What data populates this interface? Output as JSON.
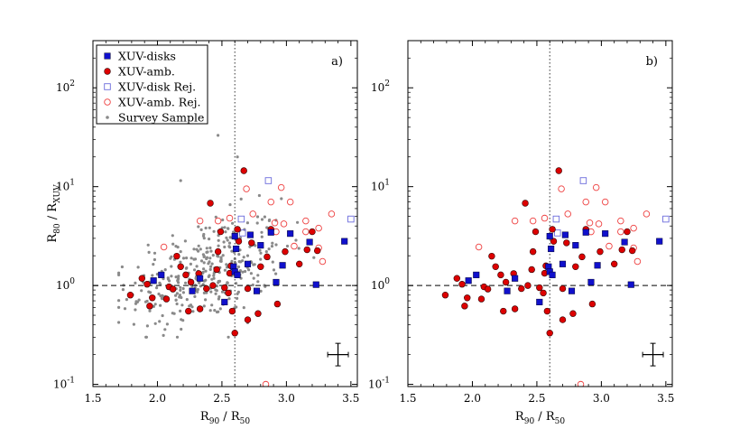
{
  "chart_data": [
    {
      "type": "scatter",
      "panel_label": "a)",
      "xlabel": "R90 / R50",
      "ylabel": "R80 / RXUV",
      "xlim": [
        1.5,
        3.55
      ],
      "ylim_log": [
        0.095,
        300
      ],
      "y_scale": "log",
      "x_ticks": [
        "1.5",
        "2.0",
        "2.5",
        "3.0",
        "3.5"
      ],
      "y_ticks": [
        "10^-1",
        "10^0",
        "10^1",
        "10^2"
      ],
      "reference_lines": {
        "vertical_x": 2.6,
        "horizontal_y": 1.0
      },
      "legend": {
        "position": "top-left",
        "entries": [
          "XUV-disks",
          "XUV-amb.",
          "XUV-disk Rej.",
          "XUV-amb. Rej.",
          "Survey Sample"
        ]
      },
      "series": [
        {
          "name": "XUV-disks",
          "marker": "filled-square",
          "color": "#1010cc",
          "points": [
            [
              1.97,
              1.12
            ],
            [
              2.03,
              1.28
            ],
            [
              2.27,
              0.88
            ],
            [
              2.33,
              1.18
            ],
            [
              2.52,
              0.68
            ],
            [
              2.59,
              1.55
            ],
            [
              2.6,
              3.15
            ],
            [
              2.61,
              2.35
            ],
            [
              2.6,
              1.38
            ],
            [
              2.62,
              1.28
            ],
            [
              2.7,
              1.65
            ],
            [
              2.72,
              3.25
            ],
            [
              2.77,
              0.88
            ],
            [
              2.8,
              2.55
            ],
            [
              2.88,
              3.45
            ],
            [
              2.92,
              1.08
            ],
            [
              2.97,
              1.6
            ],
            [
              3.03,
              3.35
            ],
            [
              3.18,
              2.75
            ],
            [
              3.23,
              1.02
            ],
            [
              3.45,
              2.8
            ]
          ]
        },
        {
          "name": "XUV-amb.",
          "marker": "filled-circle",
          "color": "#dd0000",
          "points": [
            [
              1.79,
              0.8
            ],
            [
              1.88,
              1.18
            ],
            [
              1.92,
              1.03
            ],
            [
              1.94,
              0.62
            ],
            [
              1.96,
              0.75
            ],
            [
              2.07,
              0.73
            ],
            [
              2.09,
              0.97
            ],
            [
              2.12,
              0.92
            ],
            [
              2.15,
              1.98
            ],
            [
              2.18,
              1.55
            ],
            [
              2.22,
              1.28
            ],
            [
              2.24,
              0.55
            ],
            [
              2.26,
              1.08
            ],
            [
              2.32,
              1.32
            ],
            [
              2.33,
              0.58
            ],
            [
              2.38,
              0.93
            ],
            [
              2.41,
              6.8
            ],
            [
              2.43,
              1.0
            ],
            [
              2.46,
              1.45
            ],
            [
              2.47,
              2.2
            ],
            [
              2.49,
              3.5
            ],
            [
              2.52,
              0.95
            ],
            [
              2.55,
              0.84
            ],
            [
              2.56,
              1.33
            ],
            [
              2.57,
              1.58
            ],
            [
              2.58,
              0.55
            ],
            [
              2.6,
              0.33
            ],
            [
              2.62,
              3.7
            ],
            [
              2.63,
              2.8
            ],
            [
              2.67,
              14.5
            ],
            [
              2.7,
              0.45
            ],
            [
              2.7,
              0.93
            ],
            [
              2.73,
              2.7
            ],
            [
              2.78,
              0.52
            ],
            [
              2.8,
              1.55
            ],
            [
              2.85,
              1.95
            ],
            [
              2.88,
              3.7
            ],
            [
              2.93,
              0.65
            ],
            [
              2.99,
              2.2
            ],
            [
              3.1,
              1.65
            ],
            [
              3.16,
              2.3
            ],
            [
              3.2,
              3.5
            ],
            [
              3.24,
              2.25
            ]
          ]
        },
        {
          "name": "XUV-disk Rej.",
          "marker": "open-square",
          "color": "#6b6bdc",
          "points": [
            [
              2.65,
              4.7
            ],
            [
              2.66,
              3.4
            ],
            [
              2.86,
              11.5
            ],
            [
              3.5,
              4.7
            ]
          ]
        },
        {
          "name": "XUV-amb. Rej.",
          "marker": "open-circle",
          "color": "#ee4040",
          "points": [
            [
              2.05,
              2.45
            ],
            [
              2.33,
              4.5
            ],
            [
              2.47,
              4.5
            ],
            [
              2.56,
              4.8
            ],
            [
              2.69,
              9.5
            ],
            [
              2.74,
              5.3
            ],
            [
              2.84,
              0.1
            ],
            [
              2.88,
              7.0
            ],
            [
              2.91,
              4.3
            ],
            [
              2.92,
              3.5
            ],
            [
              2.96,
              9.8
            ],
            [
              2.98,
              4.2
            ],
            [
              3.03,
              7.0
            ],
            [
              3.06,
              2.5
            ],
            [
              3.15,
              3.5
            ],
            [
              3.15,
              4.5
            ],
            [
              3.25,
              3.8
            ],
            [
              3.25,
              2.4
            ],
            [
              3.28,
              1.75
            ],
            [
              3.35,
              5.3
            ]
          ]
        },
        {
          "name": "Survey Sample",
          "marker": "small-dot",
          "color": "#8a8a8a",
          "count": 360,
          "x_range": [
            1.7,
            3.45
          ],
          "y_range": [
            0.3,
            33
          ]
        }
      ],
      "error_bar": {
        "x": 3.4,
        "y": 0.2,
        "x_err": 0.08,
        "y_err_log_factor": 1.3
      }
    },
    {
      "type": "scatter",
      "panel_label": "b)",
      "xlabel": "R90 / R50",
      "ylabel": "",
      "xlim": [
        1.5,
        3.55
      ],
      "ylim_log": [
        0.095,
        300
      ],
      "y_scale": "log",
      "x_ticks": [
        "1.5",
        "2.0",
        "2.5",
        "3.0",
        "3.5"
      ],
      "y_ticks": [
        "10^-1",
        "10^0",
        "10^1",
        "10^2"
      ],
      "reference_lines": {
        "vertical_x": 2.6,
        "horizontal_y": 1.0
      },
      "series_same_as_panel_a_without_survey_sample": true,
      "error_bar": {
        "x": 3.4,
        "y": 0.2,
        "x_err": 0.08,
        "y_err_log_factor": 1.3
      }
    }
  ]
}
